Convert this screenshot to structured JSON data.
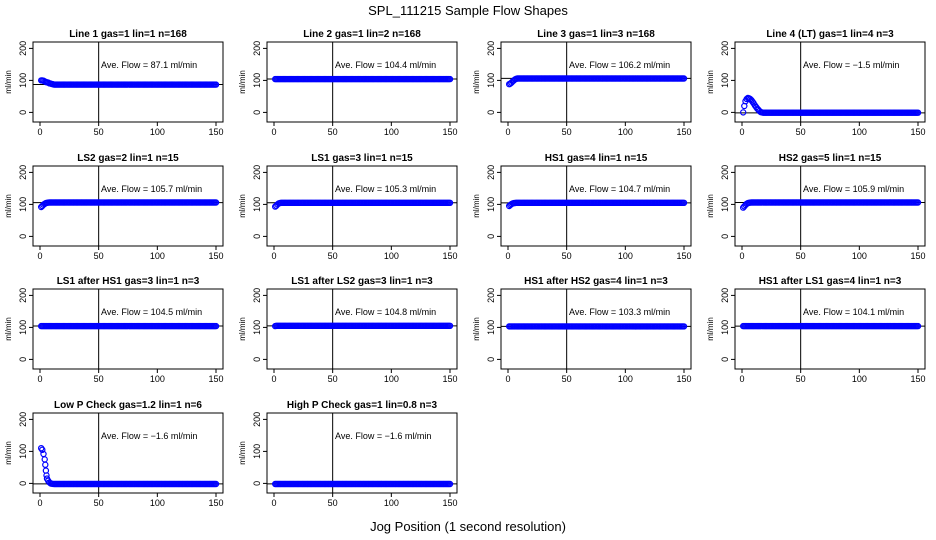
{
  "figure": {
    "title": "SPL_111215  Sample Flow Shapes",
    "xlabel": "Jog Position (1 second resolution)"
  },
  "chart_data": [
    {
      "type": "scatter",
      "title": "Line 1 gas=1 lin=1 n=168",
      "ylabel": "ml/min",
      "annotation": "Ave. Flow =  87.1  ml/min",
      "xlim": [
        0,
        150
      ],
      "ylim": [
        -30,
        220
      ],
      "xticks": [
        0,
        50,
        100,
        150
      ],
      "yticks": [
        0,
        100,
        200
      ],
      "hline": 87.1,
      "vline": 50,
      "marker_color": "#0000ff",
      "points": [
        [
          1,
          100
        ],
        [
          2,
          100
        ],
        [
          3,
          99
        ],
        [
          4,
          97
        ],
        [
          5,
          95
        ],
        [
          6,
          94
        ],
        [
          7,
          93
        ],
        [
          8,
          91
        ],
        [
          9,
          90
        ],
        [
          10,
          89
        ],
        [
          11,
          88
        ],
        [
          12,
          87
        ],
        [
          13,
          87
        ],
        [
          14,
          87
        ],
        [
          15,
          87
        ],
        [
          20,
          87
        ],
        [
          30,
          87
        ],
        [
          40,
          87
        ],
        [
          60,
          87
        ],
        [
          80,
          87
        ],
        [
          100,
          87
        ],
        [
          120,
          87
        ],
        [
          150,
          87
        ]
      ]
    },
    {
      "type": "scatter",
      "title": "Line 2 gas=1 lin=2 n=168",
      "ylabel": "ml/min",
      "annotation": "Ave. Flow = 104.4  ml/min",
      "xlim": [
        0,
        150
      ],
      "ylim": [
        -30,
        220
      ],
      "xticks": [
        0,
        50,
        100,
        150
      ],
      "yticks": [
        0,
        100,
        200
      ],
      "hline": 104.4,
      "vline": 50,
      "marker_color": "#0000ff",
      "points": [
        [
          1,
          104
        ],
        [
          2,
          104
        ],
        [
          3,
          104
        ],
        [
          5,
          104
        ],
        [
          10,
          104
        ],
        [
          20,
          104
        ],
        [
          40,
          104
        ],
        [
          60,
          104
        ],
        [
          80,
          104
        ],
        [
          100,
          104
        ],
        [
          120,
          104
        ],
        [
          150,
          104
        ]
      ]
    },
    {
      "type": "scatter",
      "title": "Line 3 gas=1 lin=3 n=168",
      "ylabel": "ml/min",
      "annotation": "Ave. Flow = 106.2  ml/min",
      "xlim": [
        0,
        150
      ],
      "ylim": [
        -30,
        220
      ],
      "xticks": [
        0,
        50,
        100,
        150
      ],
      "yticks": [
        0,
        100,
        200
      ],
      "hline": 106.2,
      "vline": 50,
      "marker_color": "#0000ff",
      "points": [
        [
          1,
          88
        ],
        [
          2,
          90
        ],
        [
          3,
          93
        ],
        [
          4,
          97
        ],
        [
          5,
          100
        ],
        [
          6,
          103
        ],
        [
          7,
          105
        ],
        [
          8,
          106
        ],
        [
          10,
          106
        ],
        [
          20,
          106
        ],
        [
          40,
          106
        ],
        [
          60,
          106
        ],
        [
          80,
          106
        ],
        [
          100,
          106
        ],
        [
          120,
          106
        ],
        [
          150,
          106
        ]
      ]
    },
    {
      "type": "scatter",
      "title": "Line 4 (LT) gas=1 lin=4 n=3",
      "ylabel": "ml/min",
      "annotation": "Ave. Flow = −1.5  ml/min",
      "xlim": [
        0,
        150
      ],
      "ylim": [
        -30,
        220
      ],
      "xticks": [
        0,
        50,
        100,
        150
      ],
      "yticks": [
        0,
        100,
        200
      ],
      "hline": -1.5,
      "vline": 50,
      "marker_color": "#0000ff",
      "points": [
        [
          1,
          0
        ],
        [
          2,
          20
        ],
        [
          3,
          35
        ],
        [
          4,
          42
        ],
        [
          5,
          45
        ],
        [
          6,
          44
        ],
        [
          7,
          42
        ],
        [
          8,
          38
        ],
        [
          9,
          33
        ],
        [
          10,
          28
        ],
        [
          11,
          22
        ],
        [
          12,
          17
        ],
        [
          13,
          12
        ],
        [
          14,
          8
        ],
        [
          15,
          4
        ],
        [
          16,
          1
        ],
        [
          18,
          -1
        ],
        [
          20,
          -1
        ],
        [
          30,
          -1
        ],
        [
          40,
          -1
        ],
        [
          60,
          -1
        ],
        [
          80,
          -1
        ],
        [
          100,
          -1
        ],
        [
          120,
          -1
        ],
        [
          150,
          -1
        ]
      ]
    },
    {
      "type": "scatter",
      "title": "LS2 gas=2 lin=1 n=15",
      "ylabel": "ml/min",
      "annotation": "Ave. Flow = 105.7  ml/min",
      "xlim": [
        0,
        150
      ],
      "ylim": [
        -30,
        220
      ],
      "xticks": [
        0,
        50,
        100,
        150
      ],
      "yticks": [
        0,
        100,
        200
      ],
      "hline": 105.7,
      "vline": 50,
      "marker_color": "#0000ff",
      "points": [
        [
          1,
          92
        ],
        [
          2,
          95
        ],
        [
          3,
          99
        ],
        [
          4,
          102
        ],
        [
          5,
          104
        ],
        [
          6,
          105
        ],
        [
          8,
          106
        ],
        [
          10,
          106
        ],
        [
          20,
          106
        ],
        [
          40,
          106
        ],
        [
          60,
          106
        ],
        [
          80,
          106
        ],
        [
          100,
          106
        ],
        [
          120,
          106
        ],
        [
          150,
          106
        ]
      ]
    },
    {
      "type": "scatter",
      "title": "LS1 gas=3 lin=1 n=15",
      "ylabel": "ml/min",
      "annotation": "Ave. Flow = 105.3  ml/min",
      "xlim": [
        0,
        150
      ],
      "ylim": [
        -30,
        220
      ],
      "xticks": [
        0,
        50,
        100,
        150
      ],
      "yticks": [
        0,
        100,
        200
      ],
      "hline": 105.3,
      "vline": 50,
      "marker_color": "#0000ff",
      "points": [
        [
          1,
          93
        ],
        [
          2,
          96
        ],
        [
          3,
          100
        ],
        [
          4,
          103
        ],
        [
          5,
          104
        ],
        [
          6,
          105
        ],
        [
          8,
          105
        ],
        [
          10,
          105
        ],
        [
          20,
          105
        ],
        [
          40,
          105
        ],
        [
          60,
          105
        ],
        [
          80,
          105
        ],
        [
          100,
          105
        ],
        [
          120,
          105
        ],
        [
          150,
          105
        ]
      ]
    },
    {
      "type": "scatter",
      "title": "HS1 gas=4 lin=1 n=15",
      "ylabel": "ml/min",
      "annotation": "Ave. Flow = 104.7  ml/min",
      "xlim": [
        0,
        150
      ],
      "ylim": [
        -30,
        220
      ],
      "xticks": [
        0,
        50,
        100,
        150
      ],
      "yticks": [
        0,
        100,
        200
      ],
      "hline": 104.7,
      "vline": 50,
      "marker_color": "#0000ff",
      "points": [
        [
          1,
          95
        ],
        [
          2,
          98
        ],
        [
          3,
          101
        ],
        [
          4,
          103
        ],
        [
          5,
          104
        ],
        [
          7,
          105
        ],
        [
          10,
          105
        ],
        [
          20,
          105
        ],
        [
          40,
          105
        ],
        [
          60,
          105
        ],
        [
          80,
          105
        ],
        [
          100,
          105
        ],
        [
          120,
          105
        ],
        [
          150,
          105
        ]
      ]
    },
    {
      "type": "scatter",
      "title": "HS2 gas=5 lin=1 n=15",
      "ylabel": "ml/min",
      "annotation": "Ave. Flow = 105.9  ml/min",
      "xlim": [
        0,
        150
      ],
      "ylim": [
        -30,
        220
      ],
      "xticks": [
        0,
        50,
        100,
        150
      ],
      "yticks": [
        0,
        100,
        200
      ],
      "hline": 105.9,
      "vline": 50,
      "marker_color": "#0000ff",
      "points": [
        [
          1,
          90
        ],
        [
          2,
          94
        ],
        [
          3,
          98
        ],
        [
          4,
          102
        ],
        [
          5,
          104
        ],
        [
          6,
          105
        ],
        [
          8,
          106
        ],
        [
          10,
          106
        ],
        [
          20,
          106
        ],
        [
          40,
          106
        ],
        [
          60,
          106
        ],
        [
          80,
          106
        ],
        [
          100,
          106
        ],
        [
          120,
          106
        ],
        [
          150,
          106
        ]
      ]
    },
    {
      "type": "scatter",
      "title": "LS1 after HS1 gas=3 lin=1 n=3",
      "ylabel": "ml/min",
      "annotation": "Ave. Flow = 104.5  ml/min",
      "xlim": [
        0,
        150
      ],
      "ylim": [
        -30,
        220
      ],
      "xticks": [
        0,
        50,
        100,
        150
      ],
      "yticks": [
        0,
        100,
        200
      ],
      "hline": 104.5,
      "vline": 50,
      "marker_color": "#0000ff",
      "points": [
        [
          1,
          104
        ],
        [
          2,
          104
        ],
        [
          5,
          104
        ],
        [
          10,
          104
        ],
        [
          20,
          104
        ],
        [
          40,
          104
        ],
        [
          60,
          104
        ],
        [
          80,
          104
        ],
        [
          100,
          104
        ],
        [
          120,
          104
        ],
        [
          150,
          104
        ]
      ]
    },
    {
      "type": "scatter",
      "title": "LS1 after LS2 gas=3 lin=1 n=3",
      "ylabel": "ml/min",
      "annotation": "Ave. Flow = 104.8  ml/min",
      "xlim": [
        0,
        150
      ],
      "ylim": [
        -30,
        220
      ],
      "xticks": [
        0,
        50,
        100,
        150
      ],
      "yticks": [
        0,
        100,
        200
      ],
      "hline": 104.8,
      "vline": 50,
      "marker_color": "#0000ff",
      "points": [
        [
          1,
          104
        ],
        [
          2,
          105
        ],
        [
          5,
          105
        ],
        [
          10,
          105
        ],
        [
          20,
          105
        ],
        [
          40,
          105
        ],
        [
          60,
          105
        ],
        [
          80,
          105
        ],
        [
          100,
          105
        ],
        [
          120,
          105
        ],
        [
          150,
          105
        ]
      ]
    },
    {
      "type": "scatter",
      "title": "HS1 after HS2 gas=4 lin=1 n=3",
      "ylabel": "ml/min",
      "annotation": "Ave. Flow = 103.3  ml/min",
      "xlim": [
        0,
        150
      ],
      "ylim": [
        -30,
        220
      ],
      "xticks": [
        0,
        50,
        100,
        150
      ],
      "yticks": [
        0,
        100,
        200
      ],
      "hline": 103.3,
      "vline": 50,
      "marker_color": "#0000ff",
      "points": [
        [
          1,
          103
        ],
        [
          2,
          103
        ],
        [
          5,
          103
        ],
        [
          10,
          103
        ],
        [
          20,
          103
        ],
        [
          40,
          103
        ],
        [
          60,
          103
        ],
        [
          80,
          103
        ],
        [
          100,
          103
        ],
        [
          120,
          103
        ],
        [
          150,
          103
        ]
      ]
    },
    {
      "type": "scatter",
      "title": "HS1 after LS1 gas=4 lin=1 n=3",
      "ylabel": "ml/min",
      "annotation": "Ave. Flow = 104.1  ml/min",
      "xlim": [
        0,
        150
      ],
      "ylim": [
        -30,
        220
      ],
      "xticks": [
        0,
        50,
        100,
        150
      ],
      "yticks": [
        0,
        100,
        200
      ],
      "hline": 104.1,
      "vline": 50,
      "marker_color": "#0000ff",
      "points": [
        [
          1,
          104
        ],
        [
          2,
          104
        ],
        [
          5,
          104
        ],
        [
          10,
          104
        ],
        [
          20,
          104
        ],
        [
          40,
          104
        ],
        [
          60,
          104
        ],
        [
          80,
          104
        ],
        [
          100,
          104
        ],
        [
          120,
          104
        ],
        [
          150,
          104
        ]
      ]
    },
    {
      "type": "scatter",
      "title": "Low P Check gas=1.2 lin=1 n=6",
      "ylabel": "ml/min",
      "annotation": "Ave. Flow = −1.6  ml/min",
      "xlim": [
        0,
        150
      ],
      "ylim": [
        -30,
        220
      ],
      "xticks": [
        0,
        50,
        100,
        150
      ],
      "yticks": [
        0,
        100,
        200
      ],
      "hline": -1.6,
      "vline": 50,
      "marker_color": "#0000ff",
      "points": [
        [
          1,
          110
        ],
        [
          2,
          105
        ],
        [
          3,
          92
        ],
        [
          4,
          75
        ],
        [
          4.5,
          58
        ],
        [
          5,
          40
        ],
        [
          5.5,
          25
        ],
        [
          6,
          15
        ],
        [
          7,
          8
        ],
        [
          8,
          3
        ],
        [
          9,
          0
        ],
        [
          10,
          -1
        ],
        [
          12,
          -2
        ],
        [
          15,
          -2
        ],
        [
          20,
          -2
        ],
        [
          30,
          -2
        ],
        [
          40,
          -2
        ],
        [
          60,
          -2
        ],
        [
          80,
          -2
        ],
        [
          100,
          -2
        ],
        [
          120,
          -2
        ],
        [
          150,
          -2
        ]
      ]
    },
    {
      "type": "scatter",
      "title": "High P Check gas=1 lin=0.8 n=3",
      "ylabel": "ml/min",
      "annotation": "Ave. Flow = −1.6  ml/min",
      "xlim": [
        0,
        150
      ],
      "ylim": [
        -30,
        220
      ],
      "xticks": [
        0,
        50,
        100,
        150
      ],
      "yticks": [
        0,
        100,
        200
      ],
      "hline": -1.6,
      "vline": 50,
      "marker_color": "#0000ff",
      "points": [
        [
          1,
          -2
        ],
        [
          2,
          -2
        ],
        [
          5,
          -2
        ],
        [
          10,
          -2
        ],
        [
          20,
          -2
        ],
        [
          40,
          -2
        ],
        [
          60,
          -2
        ],
        [
          80,
          -2
        ],
        [
          100,
          -2
        ],
        [
          120,
          -2
        ],
        [
          150,
          -2
        ]
      ]
    }
  ]
}
